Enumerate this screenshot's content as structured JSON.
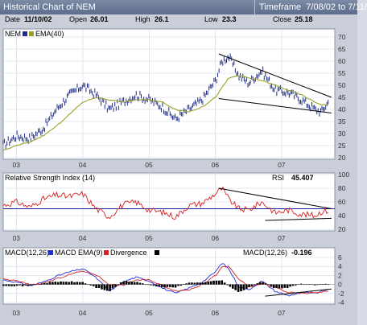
{
  "window": {
    "title": "Historical Chart of NEM",
    "timeframe_label": "Timeframe",
    "timeframe_value": "7/08/02 to 7/11/"
  },
  "quote": {
    "date_label": "Date",
    "date": "11/10/02",
    "open_label": "Open",
    "open": "26.01",
    "high_label": "High",
    "high": "26.1",
    "low_label": "Low",
    "low": "23.3",
    "close_label": "Close",
    "close": "25.18"
  },
  "colors": {
    "price": "#1f2d86",
    "ema": "#9aa12a",
    "rsi": "#d42020",
    "rsi_level": "#1a1a9c",
    "macd": "#1f2dd6",
    "macd_ema": "#d42020",
    "divergence": "#000000",
    "trendline": "#000000",
    "panel_bg": "#ffffff",
    "grid": "#cfd6e4"
  },
  "chart_data": [
    {
      "type": "line",
      "name": "price-panel",
      "legend": [
        "NEM",
        "EMA(40)"
      ],
      "x": [
        "03",
        "04",
        "05",
        "06",
        "07"
      ],
      "ylim": [
        20,
        70
      ],
      "yticks": [
        20,
        25,
        30,
        35,
        40,
        45,
        50,
        55,
        60,
        65,
        70
      ],
      "ytick_labels": [
        "20",
        "25",
        "30",
        "35",
        "40",
        "45",
        "50",
        "55",
        "60",
        "65",
        "70"
      ],
      "grid": true,
      "series": [
        {
          "name": "NEM",
          "x": [
            2002.8,
            2003.0,
            2003.2,
            2003.4,
            2003.6,
            2003.8,
            2004.0,
            2004.2,
            2004.4,
            2004.6,
            2004.8,
            2005.0,
            2005.2,
            2005.4,
            2005.6,
            2005.8,
            2006.0,
            2006.1,
            2006.2,
            2006.35,
            2006.5,
            2006.7,
            2006.9,
            2007.1,
            2007.3,
            2007.5,
            2007.6,
            2007.7
          ],
          "values": [
            25.2,
            29,
            28,
            32,
            40,
            46,
            50,
            46,
            40,
            43,
            46,
            44,
            41,
            36,
            40,
            44,
            52,
            60,
            62,
            54,
            51,
            56,
            48,
            47,
            44,
            40,
            39,
            43
          ]
        },
        {
          "name": "EMA(40)",
          "x": [
            2002.8,
            2003.0,
            2003.2,
            2003.4,
            2003.6,
            2003.8,
            2004.0,
            2004.2,
            2004.4,
            2004.6,
            2004.8,
            2005.0,
            2005.2,
            2005.4,
            2005.6,
            2005.8,
            2006.0,
            2006.1,
            2006.2,
            2006.35,
            2006.5,
            2006.7,
            2006.9,
            2007.1,
            2007.3,
            2007.5,
            2007.6,
            2007.7
          ],
          "values": [
            23,
            25,
            26.5,
            29,
            33,
            38,
            43,
            45,
            44,
            43,
            44,
            44,
            43,
            40,
            39,
            41,
            45,
            49,
            53,
            54,
            53,
            52,
            50,
            48,
            46,
            43,
            42,
            42
          ]
        }
      ],
      "trendlines": [
        {
          "x": [
            2006.05,
            2007.75
          ],
          "values": [
            63,
            45
          ]
        },
        {
          "x": [
            2006.05,
            2007.75
          ],
          "values": [
            44.5,
            38.5
          ]
        }
      ]
    },
    {
      "type": "line",
      "name": "rsi-panel",
      "legend": [
        "Relative Strength Index (14)"
      ],
      "readout_label": "RSI",
      "readout_value": "45.407",
      "x": [
        "03",
        "04",
        "05",
        "06",
        "07"
      ],
      "ylim": [
        20,
        100
      ],
      "yticks": [
        20,
        40,
        60,
        80,
        100
      ],
      "ytick_labels": [
        "20",
        "40",
        "60",
        "80",
        "100"
      ],
      "level": 50,
      "series": [
        {
          "name": "RSI",
          "x": [
            2002.8,
            2003.0,
            2003.2,
            2003.4,
            2003.6,
            2003.8,
            2004.0,
            2004.2,
            2004.4,
            2004.6,
            2004.8,
            2005.0,
            2005.2,
            2005.4,
            2005.6,
            2005.8,
            2006.0,
            2006.1,
            2006.2,
            2006.35,
            2006.5,
            2006.7,
            2006.9,
            2007.1,
            2007.3,
            2007.5,
            2007.6,
            2007.7
          ],
          "values": [
            55,
            60,
            52,
            64,
            70,
            68,
            72,
            50,
            38,
            56,
            60,
            48,
            45,
            38,
            55,
            58,
            72,
            80,
            64,
            50,
            48,
            60,
            44,
            48,
            42,
            40,
            46,
            47
          ]
        }
      ],
      "trendlines": [
        {
          "x": [
            2006.05,
            2007.75
          ],
          "values": [
            80,
            50
          ]
        },
        {
          "x": [
            2006.75,
            2007.75
          ],
          "values": [
            33,
            36
          ]
        }
      ]
    },
    {
      "type": "line",
      "name": "macd-panel",
      "legend": [
        "MACD(12,26)",
        "MACD EMA(9)",
        "Divergence"
      ],
      "readout_label": "MACD(12,26)",
      "readout_value": "-0.196",
      "x": [
        "03",
        "04",
        "05",
        "06",
        "07"
      ],
      "ylim": [
        -4,
        6
      ],
      "yticks": [
        -4,
        -2,
        0,
        2,
        4,
        6
      ],
      "ytick_labels": [
        "-4",
        "-2",
        "0",
        "2",
        "4",
        "6"
      ],
      "series": [
        {
          "name": "MACD(12,26)",
          "x": [
            2002.8,
            2003.0,
            2003.2,
            2003.4,
            2003.6,
            2003.8,
            2004.0,
            2004.2,
            2004.4,
            2004.6,
            2004.8,
            2005.0,
            2005.2,
            2005.4,
            2005.6,
            2005.8,
            2006.0,
            2006.1,
            2006.2,
            2006.35,
            2006.5,
            2006.7,
            2006.9,
            2007.1,
            2007.3,
            2007.5,
            2007.6,
            2007.7
          ],
          "values": [
            1.0,
            0.5,
            -0.3,
            0.5,
            1.8,
            2.8,
            3.5,
            1.5,
            -1.5,
            0.5,
            1.6,
            0.8,
            -0.8,
            -2.0,
            -0.8,
            0.5,
            2.8,
            4.8,
            3.5,
            -0.5,
            -1.2,
            0.8,
            -1.5,
            -2.5,
            -1.8,
            -2.0,
            -1.5,
            -1.2
          ]
        },
        {
          "name": "MACD EMA(9)",
          "x": [
            2002.8,
            2003.0,
            2003.2,
            2003.4,
            2003.6,
            2003.8,
            2004.0,
            2004.2,
            2004.4,
            2004.6,
            2004.8,
            2005.0,
            2005.2,
            2005.4,
            2005.6,
            2005.8,
            2006.0,
            2006.1,
            2006.2,
            2006.35,
            2006.5,
            2006.7,
            2006.9,
            2007.1,
            2007.3,
            2007.5,
            2007.6,
            2007.7
          ],
          "values": [
            1.2,
            0.8,
            0.0,
            0.2,
            1.2,
            2.2,
            3.0,
            2.2,
            0.0,
            -0.2,
            1.0,
            1.0,
            -0.2,
            -1.4,
            -1.2,
            0.0,
            2.0,
            3.8,
            4.0,
            1.2,
            -0.6,
            0.2,
            -0.6,
            -1.8,
            -2.0,
            -1.8,
            -1.6,
            -1.4
          ]
        },
        {
          "name": "Divergence",
          "x": [
            2002.8,
            2003.0,
            2003.2,
            2003.4,
            2003.6,
            2003.8,
            2004.0,
            2004.2,
            2004.4,
            2004.6,
            2004.8,
            2005.0,
            2005.2,
            2005.4,
            2005.6,
            2005.8,
            2006.0,
            2006.1,
            2006.2,
            2006.35,
            2006.5,
            2006.7,
            2006.9,
            2007.1,
            2007.3,
            2007.5,
            2007.6,
            2007.7
          ],
          "values": [
            -0.2,
            -0.3,
            -0.3,
            0.3,
            0.6,
            0.6,
            0.5,
            -0.7,
            -1.5,
            0.7,
            0.6,
            -0.2,
            -0.6,
            -0.6,
            0.4,
            0.5,
            0.8,
            1.0,
            -0.5,
            -1.7,
            -0.6,
            0.6,
            -0.9,
            -0.7,
            0.2,
            -0.2,
            0.1,
            0.2
          ]
        }
      ],
      "trendlines": [
        {
          "x": [
            2006.75,
            2007.75
          ],
          "values": [
            -2.6,
            -1.0
          ]
        }
      ]
    }
  ]
}
